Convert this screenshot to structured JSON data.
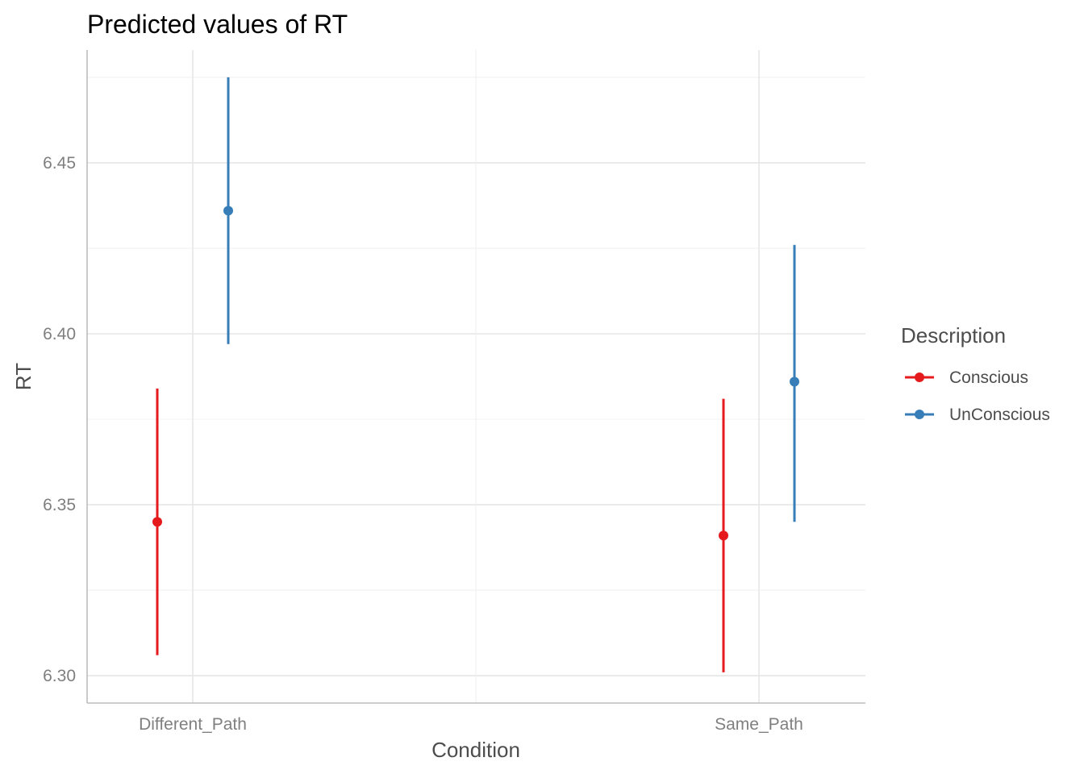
{
  "chart_data": {
    "type": "scatter",
    "title": "Predicted values of RT",
    "xlabel": "Condition",
    "ylabel": "RT",
    "categories": [
      "Different_Path",
      "Same_Path"
    ],
    "ylim": [
      6.292,
      6.483
    ],
    "yticks": [
      "6.30",
      "6.35",
      "6.40",
      "6.45"
    ],
    "grid": true,
    "legend": {
      "title": "Description",
      "position": "right"
    },
    "series": [
      {
        "name": "Conscious",
        "color": "#E41A1C",
        "values": [
          6.345,
          6.341
        ],
        "lower": [
          6.306,
          6.301
        ],
        "upper": [
          6.384,
          6.381
        ]
      },
      {
        "name": "UnConscious",
        "color": "#377EB8",
        "values": [
          6.436,
          6.386
        ],
        "lower": [
          6.397,
          6.345
        ],
        "upper": [
          6.475,
          6.426
        ]
      }
    ]
  }
}
